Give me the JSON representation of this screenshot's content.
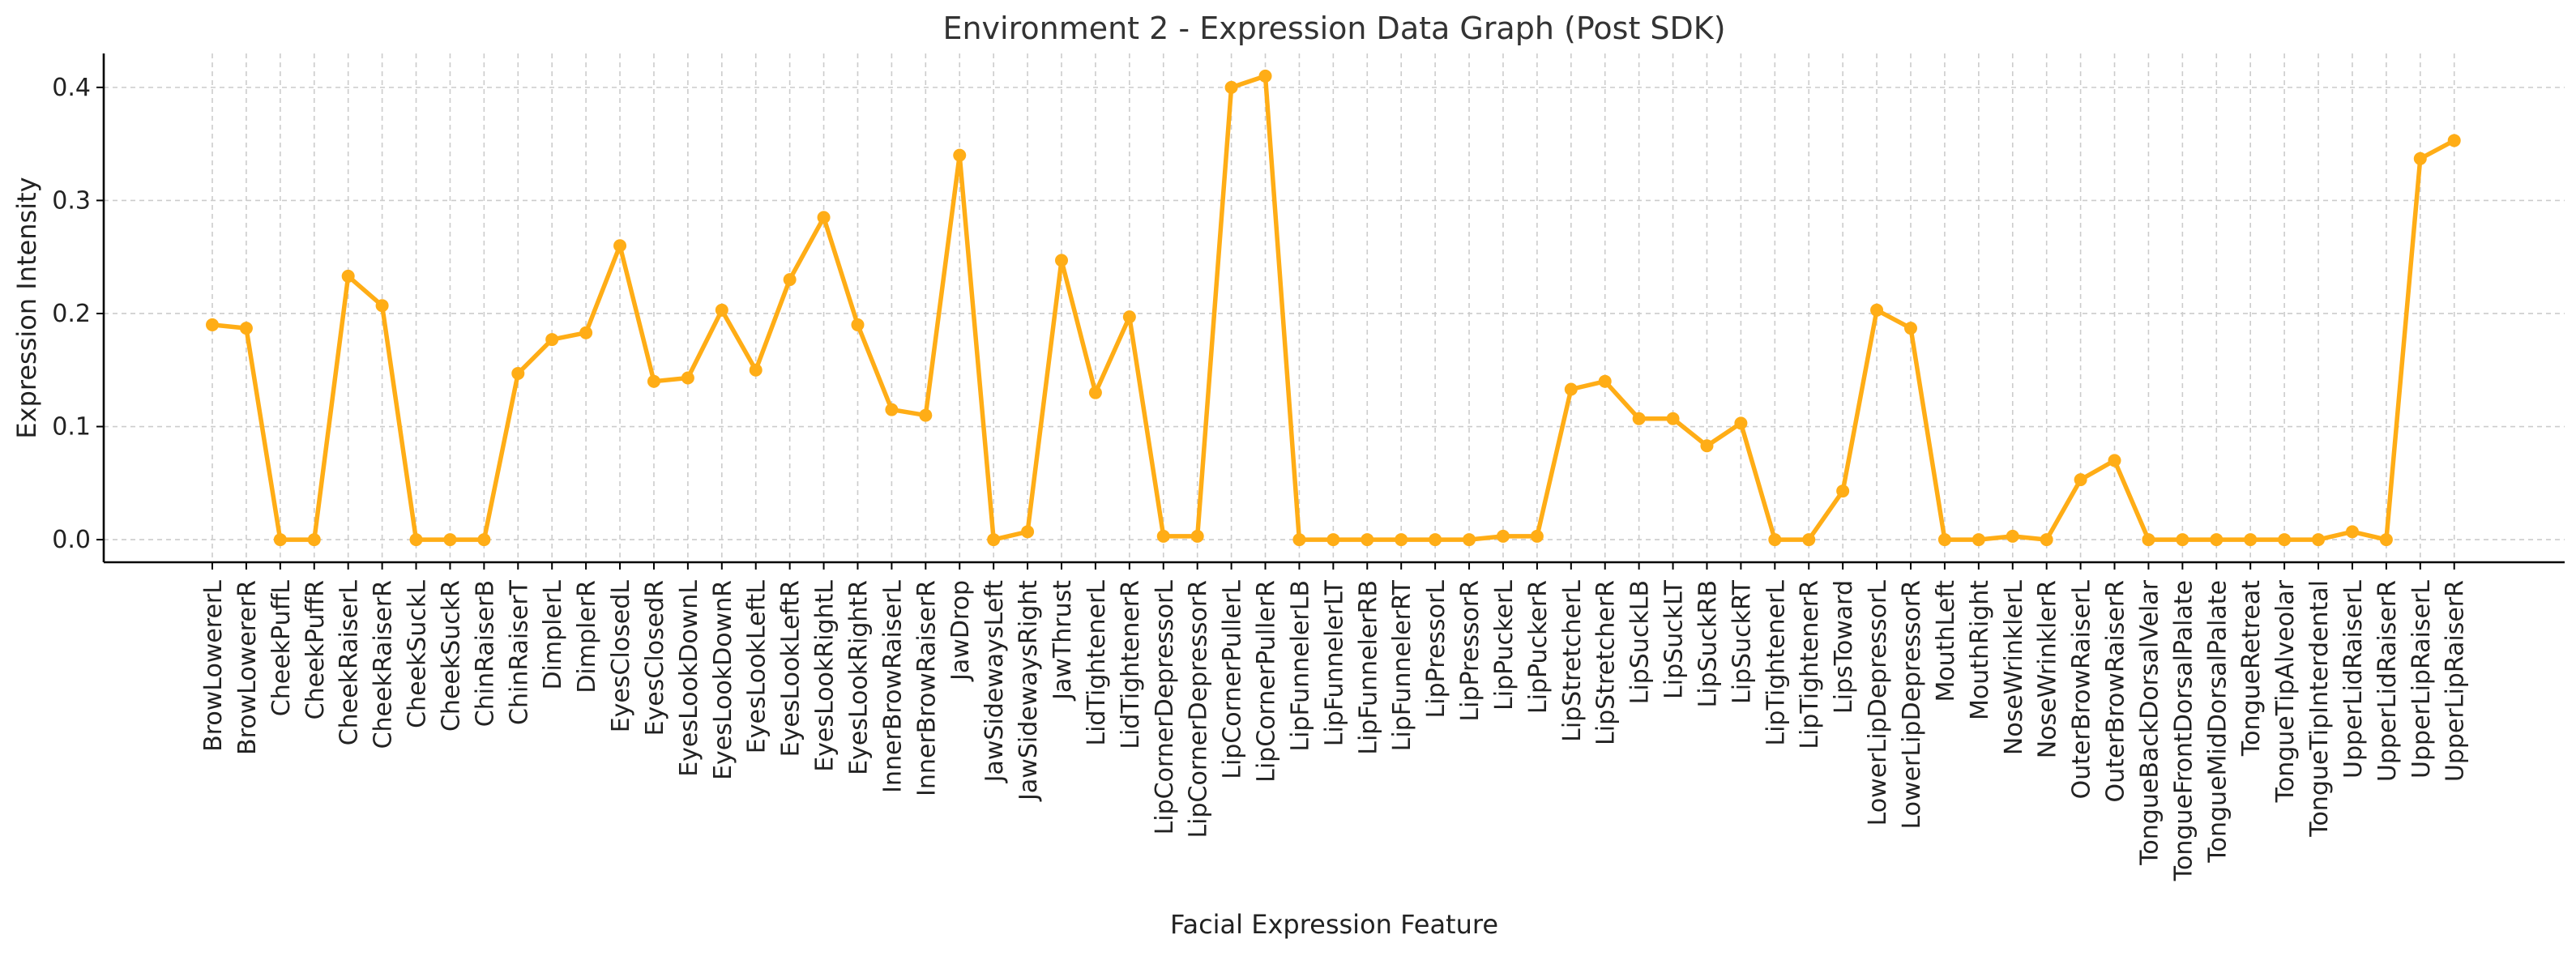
{
  "chart_data": {
    "type": "line",
    "title": "Environment 2 - Expression Data Graph (Post SDK)",
    "xlabel": "Facial Expression Feature",
    "ylabel": "Expression Intensity",
    "ylim": [
      -0.02,
      0.43
    ],
    "yticks": [
      0.0,
      0.1,
      0.2,
      0.3,
      0.4
    ],
    "ytick_labels": [
      "0.0",
      "0.1",
      "0.2",
      "0.3",
      "0.4"
    ],
    "grid": true,
    "legend": "none",
    "categories": [
      "BrowLowererL",
      "BrowLowererR",
      "CheekPuffL",
      "CheekPuffR",
      "CheekRaiserL",
      "CheekRaiserR",
      "CheekSuckL",
      "CheekSuckR",
      "ChinRaiserB",
      "ChinRaiserT",
      "DimplerL",
      "DimplerR",
      "EyesClosedL",
      "EyesClosedR",
      "EyesLookDownL",
      "EyesLookDownR",
      "EyesLookLeftL",
      "EyesLookLeftR",
      "EyesLookRightL",
      "EyesLookRightR",
      "InnerBrowRaiserL",
      "InnerBrowRaiserR",
      "JawDrop",
      "JawSidewaysLeft",
      "JawSidewaysRight",
      "JawThrust",
      "LidTightenerL",
      "LidTightenerR",
      "LipCornerDepressorL",
      "LipCornerDepressorR",
      "LipCornerPullerL",
      "LipCornerPullerR",
      "LipFunnelerLB",
      "LipFunnelerLT",
      "LipFunnelerRB",
      "LipFunnelerRT",
      "LipPressorL",
      "LipPressorR",
      "LipPuckerL",
      "LipPuckerR",
      "LipStretcherL",
      "LipStretcherR",
      "LipSuckLB",
      "LipSuckLT",
      "LipSuckRB",
      "LipSuckRT",
      "LipTightenerL",
      "LipTightenerR",
      "LipsToward",
      "LowerLipDepressorL",
      "LowerLipDepressorR",
      "MouthLeft",
      "MouthRight",
      "NoseWrinklerL",
      "NoseWrinklerR",
      "OuterBrowRaiserL",
      "OuterBrowRaiserR",
      "TongueBackDorsalVelar",
      "TongueFrontDorsalPalate",
      "TongueMidDorsalPalate",
      "TongueRetreat",
      "TongueTipAlveolar",
      "TongueTipInterdental",
      "UpperLidRaiserL",
      "UpperLidRaiserR",
      "UpperLipRaiserL",
      "UpperLipRaiserR"
    ],
    "series": [
      {
        "name": "Expression Intensity",
        "color": "#ffad16",
        "values": [
          0.19,
          0.187,
          0.0,
          0.0,
          0.233,
          0.207,
          0.0,
          0.0,
          0.0,
          0.147,
          0.177,
          0.183,
          0.26,
          0.14,
          0.143,
          0.203,
          0.15,
          0.23,
          0.285,
          0.19,
          0.115,
          0.11,
          0.34,
          0.0,
          0.007,
          0.247,
          0.13,
          0.197,
          0.003,
          0.003,
          0.4,
          0.41,
          0.0,
          0.0,
          0.0,
          0.0,
          0.0,
          0.0,
          0.003,
          0.003,
          0.133,
          0.14,
          0.107,
          0.107,
          0.083,
          0.103,
          0.0,
          0.0,
          0.043,
          0.203,
          0.187,
          0.0,
          0.0,
          0.003,
          0.0,
          0.053,
          0.07,
          0.0,
          0.0,
          0.0,
          0.0,
          0.0,
          0.0,
          0.007,
          0.0,
          0.337,
          0.353
        ]
      }
    ]
  }
}
